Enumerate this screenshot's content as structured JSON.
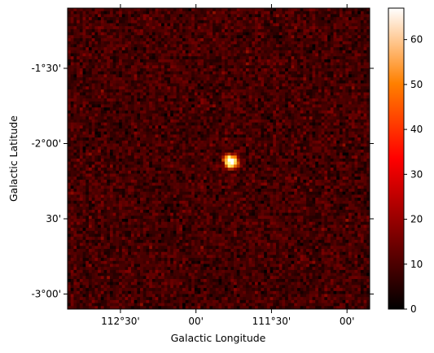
{
  "chart_data": {
    "type": "heatmap",
    "title": "",
    "xlabel": "Galactic Longitude",
    "ylabel": "Galactic Latitude",
    "x_tick_labels": [
      "112°30'",
      "00'",
      "111°30'",
      "00'"
    ],
    "x_tick_values_deg": [
      112.5,
      112.0,
      111.5,
      111.0
    ],
    "y_tick_labels": [
      "-1°30'",
      "-2°00'",
      "30'",
      "-3°00'"
    ],
    "y_tick_values_deg": [
      -1.5,
      -2.0,
      -2.5,
      -3.0
    ],
    "x_range_deg": [
      112.85,
      110.85
    ],
    "y_range_deg": [
      -3.1,
      -1.1
    ],
    "grid": false,
    "colormap": "afmhot",
    "colorbar": {
      "ticks": [
        0,
        10,
        20,
        30,
        40,
        50,
        60
      ],
      "tick_labels": [
        "0",
        "10",
        "20",
        "30",
        "40",
        "50",
        "60"
      ],
      "range": [
        0,
        67
      ]
    },
    "pixel_grid": {
      "nx": 100,
      "ny": 100
    },
    "background_mean_counts": 9,
    "source": {
      "l_deg": 111.77,
      "b_deg": -2.12,
      "peak_counts": 67
    }
  }
}
